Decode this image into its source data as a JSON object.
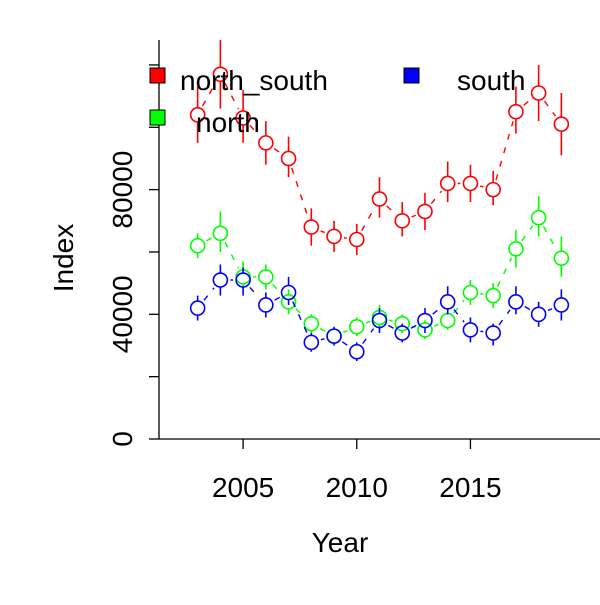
{
  "chart_data": {
    "type": "scatter",
    "title": "",
    "xlabel": "Year",
    "ylabel": "Index",
    "xlim": [
      2001.3,
      2020.7
    ],
    "ylim": [
      0,
      128000
    ],
    "x_ticks": [
      2005,
      2010,
      2015
    ],
    "x_tick_labels": [
      "2005",
      "2010",
      "2015"
    ],
    "y_ticks": [
      0,
      20000,
      40000,
      60000,
      80000,
      100000,
      120000
    ],
    "y_tick_labels": [
      "0",
      "",
      "40000",
      "",
      "80000",
      "",
      ""
    ],
    "grid": false,
    "legend_position": "top-left",
    "legend": [
      "north_south",
      "north",
      "south"
    ],
    "series": [
      {
        "name": "north_south",
        "color": "#ff0000",
        "x": [
          2003,
          2004,
          2005,
          2006,
          2007,
          2008,
          2009,
          2010,
          2011,
          2012,
          2013,
          2014,
          2015,
          2016,
          2017,
          2018,
          2019
        ],
        "y": [
          104000,
          117000,
          103000,
          95000,
          90000,
          68000,
          65000,
          64000,
          77000,
          70000,
          73000,
          82000,
          82000,
          80000,
          105000,
          111000,
          101000
        ],
        "lower": [
          95000,
          106000,
          95000,
          88000,
          84000,
          62000,
          60000,
          59000,
          71000,
          65000,
          67000,
          76000,
          76000,
          75000,
          98000,
          102000,
          91000
        ],
        "upper": [
          113000,
          128000,
          112000,
          102000,
          97000,
          74000,
          70000,
          69000,
          84000,
          76000,
          79000,
          89000,
          88000,
          86000,
          113000,
          120000,
          111000
        ]
      },
      {
        "name": "north",
        "color": "#00ff00",
        "x": [
          2003,
          2004,
          2005,
          2006,
          2007,
          2008,
          2009,
          2010,
          2011,
          2012,
          2013,
          2014,
          2015,
          2016,
          2017,
          2018,
          2019
        ],
        "y": [
          62000,
          66000,
          52000,
          52000,
          44000,
          37000,
          33000,
          36000,
          39000,
          37000,
          35000,
          38000,
          47000,
          46000,
          61000,
          71000,
          58000
        ],
        "lower": [
          58000,
          60000,
          48000,
          48000,
          40000,
          34000,
          30000,
          33000,
          35000,
          34000,
          32000,
          35000,
          43000,
          42000,
          55000,
          65000,
          52000
        ],
        "upper": [
          66000,
          73000,
          57000,
          56000,
          48000,
          40000,
          35000,
          39000,
          43000,
          40000,
          38000,
          41000,
          51000,
          50000,
          67000,
          78000,
          65000
        ]
      },
      {
        "name": "south",
        "color": "#0000ff",
        "x": [
          2003,
          2004,
          2005,
          2006,
          2007,
          2008,
          2009,
          2010,
          2011,
          2012,
          2013,
          2014,
          2015,
          2016,
          2017,
          2018,
          2019
        ],
        "y": [
          42000,
          51000,
          51000,
          43000,
          47000,
          31000,
          33000,
          28000,
          38000,
          34000,
          38000,
          44000,
          35000,
          34000,
          44000,
          40000,
          43000
        ],
        "lower": [
          38000,
          46000,
          46000,
          39000,
          43000,
          28000,
          30000,
          25000,
          34000,
          31000,
          34000,
          40000,
          31000,
          30000,
          40000,
          36000,
          38000
        ],
        "upper": [
          46000,
          56000,
          55000,
          47000,
          52000,
          34000,
          36000,
          31000,
          42000,
          37000,
          42000,
          49000,
          39000,
          37000,
          49000,
          44000,
          48000
        ]
      }
    ]
  }
}
